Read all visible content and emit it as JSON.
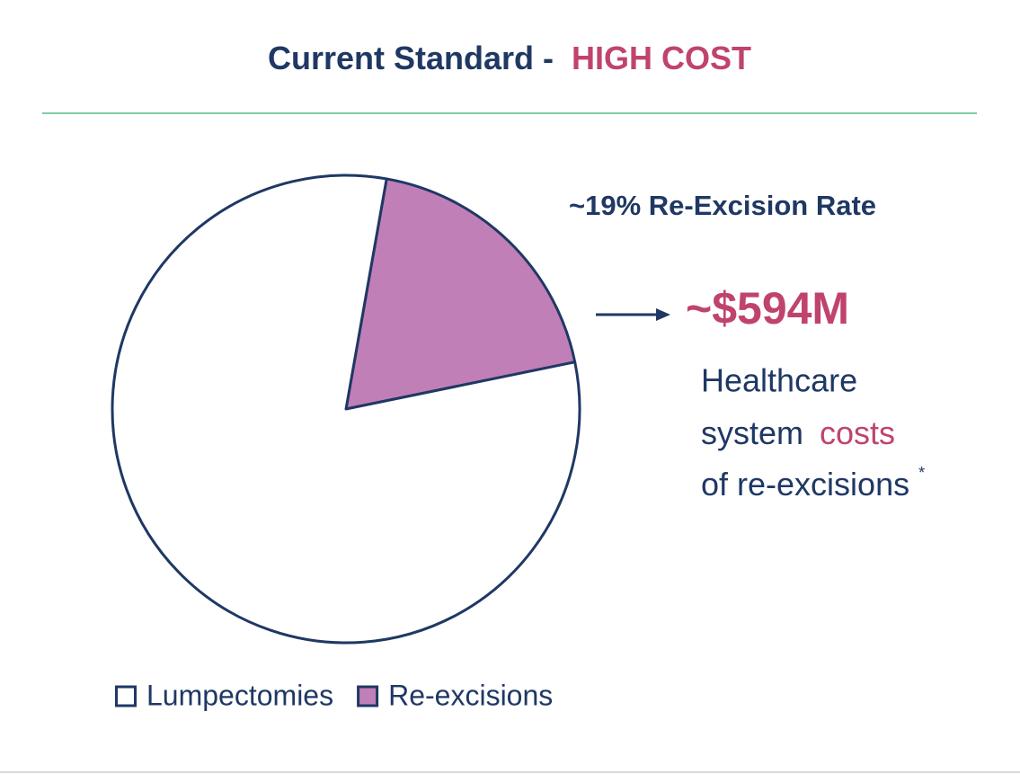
{
  "chart_data": {
    "type": "pie",
    "title": "Current Standard -",
    "title_highlight": "HIGH COST",
    "categories": [
      "Lumpectomies",
      "Re-excisions"
    ],
    "values": [
      81,
      19
    ],
    "colors": [
      "#ffffff",
      "#c17fb7"
    ],
    "rate_label": "~19% Re-Excision Rate",
    "cost_value": "~$594M",
    "cost_text": {
      "line1": "Healthcare",
      "line2_start": "system",
      "line2_highlight": "costs",
      "line3": "of re-excisions",
      "footnote_mark": "*"
    },
    "legend": true
  }
}
